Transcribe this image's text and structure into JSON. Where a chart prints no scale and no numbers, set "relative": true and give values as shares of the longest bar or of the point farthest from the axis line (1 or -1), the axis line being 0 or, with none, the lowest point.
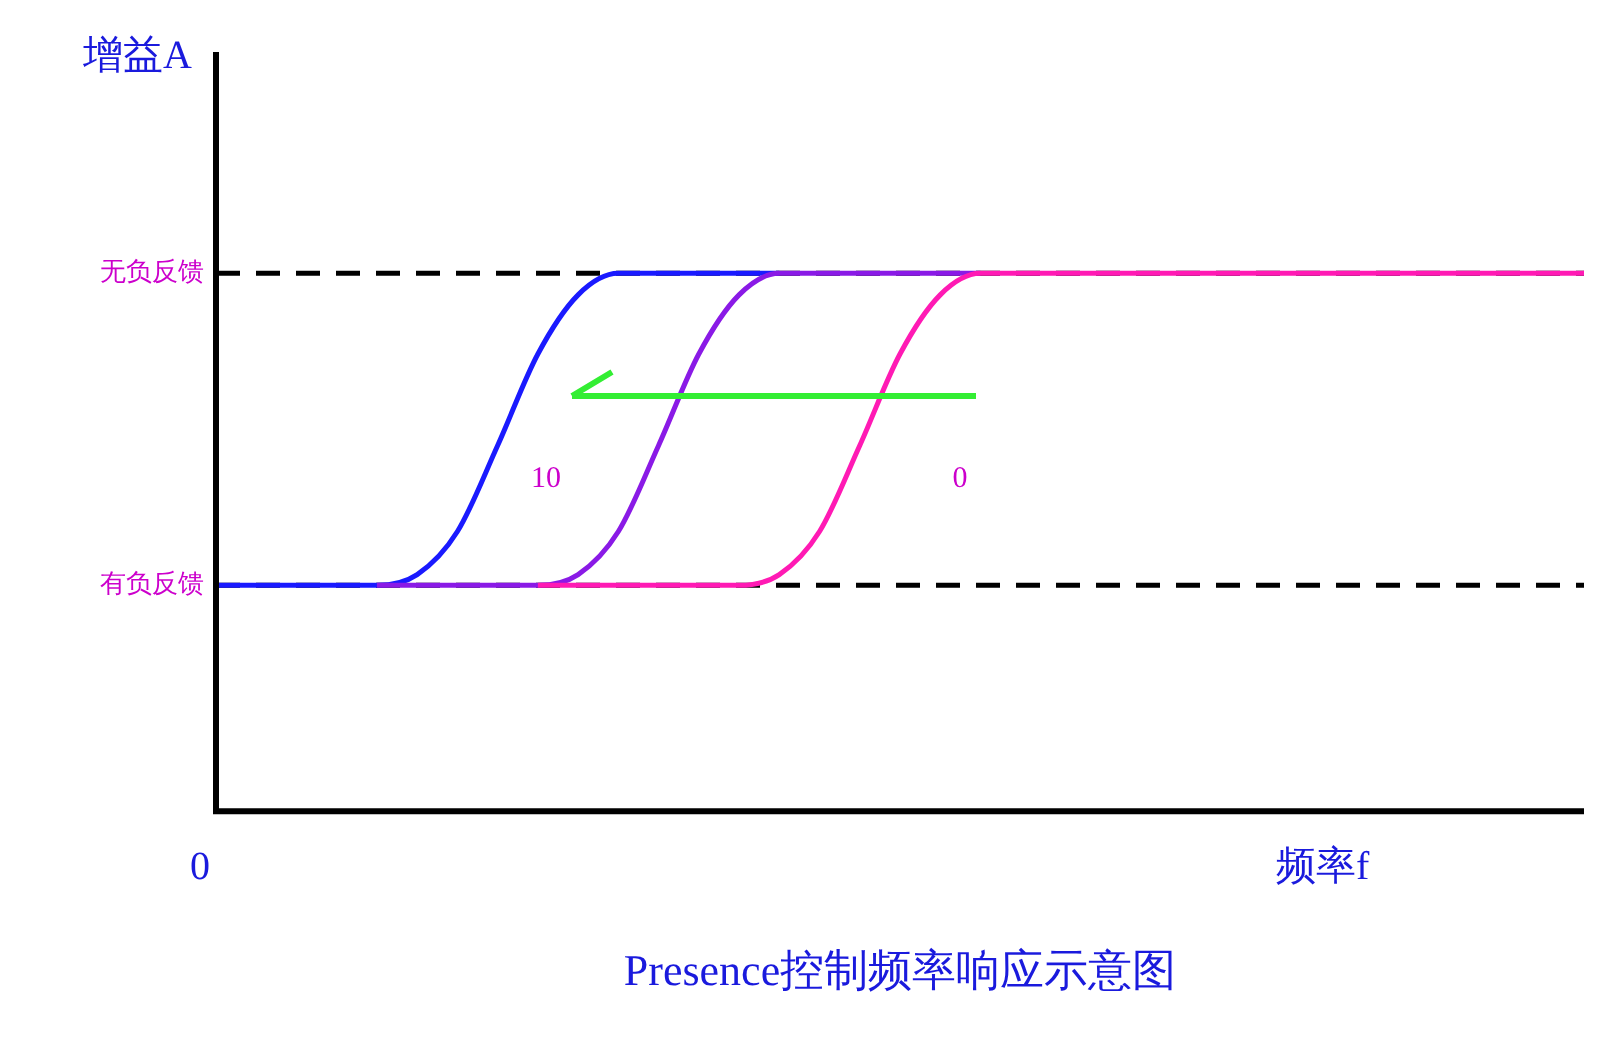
{
  "chart_data": {
    "type": "line",
    "title": "Presence控制频率响应示意图",
    "xlabel": "频率f",
    "ylabel": "增益A",
    "relative": true,
    "legend": false,
    "grid": false,
    "marker": "none",
    "line_style": "solid",
    "categories": [
      null,
      null,
      null,
      null,
      null,
      null,
      null,
      null,
      null,
      null,
      null,
      null,
      null,
      null,
      null,
      null,
      null,
      null,
      null,
      null,
      null,
      null,
      null,
      null,
      null,
      null,
      null,
      null,
      null,
      null,
      null,
      null,
      null,
      null,
      null
    ],
    "series": [
      {
        "color": "#ff1ab4",
        "values": [
          null,
          null,
          null,
          null,
          null,
          null,
          null,
          null,
          0.42,
          0.42,
          0.42,
          0.42,
          0.42,
          0.42,
          0.44,
          0.52,
          0.68,
          0.85,
          0.96,
          1,
          1,
          1,
          1,
          1,
          1,
          1,
          1,
          1,
          1,
          1,
          1,
          1,
          1,
          1,
          1
        ]
      },
      {
        "color": "#8a1ae6",
        "values": [
          null,
          null,
          null,
          null,
          0.42,
          0.42,
          0.42,
          0.42,
          0.42,
          0.44,
          0.52,
          0.68,
          0.85,
          0.96,
          1,
          1,
          1,
          1,
          1,
          1,
          null,
          null,
          null,
          null,
          null,
          null,
          null,
          null,
          null,
          null,
          null,
          null,
          null,
          null,
          null
        ]
      },
      {
        "color": "#1a1aff",
        "values": [
          0.42,
          0.42,
          0.42,
          0.42,
          0.42,
          0.44,
          0.52,
          0.68,
          0.85,
          0.96,
          1,
          1,
          1,
          1,
          1,
          null,
          null,
          null,
          null,
          null,
          null,
          null,
          null,
          null,
          null,
          null,
          null,
          null,
          null,
          null,
          null,
          null,
          null,
          null,
          null
        ]
      }
    ],
    "ref_lines": [
      {
        "axis": "y",
        "value": 1,
        "label": "无负反馈",
        "color": "#000000",
        "line_style": "dashed"
      },
      {
        "axis": "y",
        "value": 0.42,
        "label": "有负反馈",
        "color": "#000000",
        "line_style": "dashed"
      }
    ],
    "annotations": [
      "0",
      "10",
      "0"
    ]
  }
}
